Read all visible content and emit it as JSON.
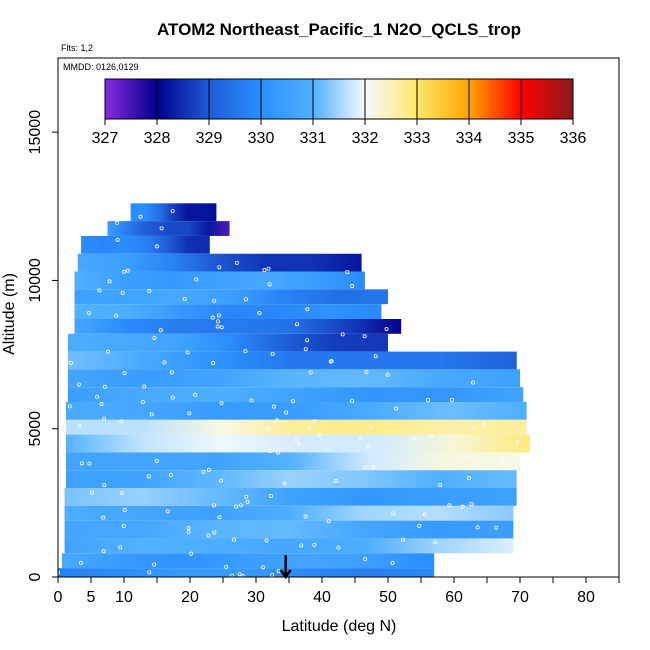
{
  "chart_data": {
    "type": "heatmap",
    "title": "ATOM2 Northeast_Pacific_1 N2O_QCLS_trop",
    "subtitle_flights": "Flts: 1,2",
    "subtitle_dates": "MMDD: 0126,0129",
    "xlabel": "Latitude (deg N)",
    "ylabel": "Altitude (m)",
    "xlim": [
      0,
      85
    ],
    "ylim": [
      0,
      17500
    ],
    "x_ticks": [
      0,
      5,
      10,
      20,
      30,
      40,
      50,
      60,
      70,
      80
    ],
    "y_ticks": [
      0,
      5000,
      10000,
      15000
    ],
    "colorbar": {
      "min": 327,
      "max": 336,
      "ticks": [
        327,
        328,
        329,
        330,
        331,
        332,
        333,
        334,
        335,
        336
      ],
      "colors": [
        "#8a2be2",
        "#00008b",
        "#1e5bd6",
        "#2b8fff",
        "#4fb0ff",
        "#f5fbff",
        "#ffe96b",
        "#ffa500",
        "#ff0000",
        "#8b1a1a"
      ]
    },
    "marker": {
      "x": 34.5,
      "label": "arrow"
    },
    "bands": [
      {
        "y0": 12000,
        "y1": 12600,
        "x0": 11,
        "x1": 24,
        "v0": 330.0,
        "v1": 327.8
      },
      {
        "y0": 11500,
        "y1": 12000,
        "x0": 7.5,
        "x1": 26,
        "v0": 330.2,
        "v1": 327.6
      },
      {
        "y0": 10900,
        "y1": 11500,
        "x0": 3.5,
        "x1": 23,
        "v0": 330.3,
        "v1": 328.6
      },
      {
        "y0": 10300,
        "y1": 10900,
        "x0": 3,
        "x1": 46,
        "v0": 330.6,
        "v1": 327.9
      },
      {
        "y0": 9700,
        "y1": 10300,
        "x0": 2.5,
        "x1": 46.5,
        "v0": 330.8,
        "v1": 330.2
      },
      {
        "y0": 9200,
        "y1": 9700,
        "x0": 2.5,
        "x1": 50,
        "v0": 330.9,
        "v1": 329.5
      },
      {
        "y0": 8700,
        "y1": 9200,
        "x0": 2.5,
        "x1": 49,
        "v0": 330.8,
        "v1": 329.6
      },
      {
        "y0": 8200,
        "y1": 8700,
        "x0": 2.5,
        "x1": 52,
        "v0": 330.6,
        "v1": 328.3
      },
      {
        "y0": 7600,
        "y1": 8200,
        "x0": 1.5,
        "x1": 50,
        "v0": 331.2,
        "v1": 328.5
      },
      {
        "y0": 7000,
        "y1": 7600,
        "x0": 1.5,
        "x1": 69.5,
        "v0": 330.9,
        "v1": 328.9
      },
      {
        "y0": 6400,
        "y1": 7000,
        "x0": 1.5,
        "x1": 70,
        "v0": 330.7,
        "v1": 330.9
      },
      {
        "y0": 5900,
        "y1": 6400,
        "x0": 1.5,
        "x1": 70.5,
        "v0": 330.7,
        "v1": 330.4
      },
      {
        "y0": 5300,
        "y1": 5900,
        "x0": 1.2,
        "x1": 71,
        "v0": 330.5,
        "v1": 330.9
      },
      {
        "y0": 4800,
        "y1": 5300,
        "x0": 1.2,
        "x1": 71,
        "v0": 331.8,
        "v1": 333.0
      },
      {
        "y0": 4200,
        "y1": 4800,
        "x0": 1.2,
        "x1": 71.5,
        "v0": 331.2,
        "v1": 332.6
      },
      {
        "y0": 3600,
        "y1": 4200,
        "x0": 1.2,
        "x1": 70,
        "v0": 330.3,
        "v1": 332.2
      },
      {
        "y0": 3000,
        "y1": 3600,
        "x0": 1.2,
        "x1": 69.5,
        "v0": 330.8,
        "v1": 331.4
      },
      {
        "y0": 2400,
        "y1": 3000,
        "x0": 1,
        "x1": 69.5,
        "v0": 331.3,
        "v1": 330.2
      },
      {
        "y0": 1900,
        "y1": 2400,
        "x0": 1,
        "x1": 69,
        "v0": 330.6,
        "v1": 331.5
      },
      {
        "y0": 1300,
        "y1": 1900,
        "x0": 1,
        "x1": 69,
        "v0": 331.0,
        "v1": 330.6
      },
      {
        "y0": 800,
        "y1": 1300,
        "x0": 1,
        "x1": 69,
        "v0": 330.5,
        "v1": 331.5
      },
      {
        "y0": 300,
        "y1": 800,
        "x0": 0.6,
        "x1": 57,
        "v0": 330.6,
        "v1": 330.2
      },
      {
        "y0": 0,
        "y1": 300,
        "x0": 0,
        "x1": 57,
        "v0": 330.1,
        "v1": 330.0
      }
    ]
  }
}
